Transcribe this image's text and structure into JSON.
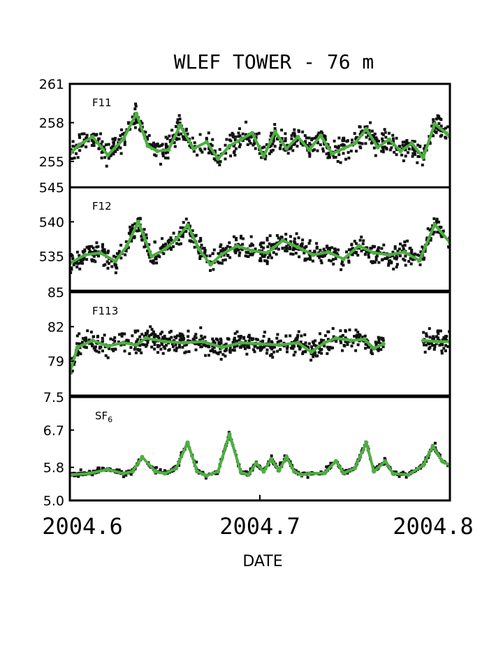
{
  "chart_data": {
    "type": "scatter",
    "title": "WLEF TOWER - 76 m",
    "xlabel": "DATE",
    "xlim": [
      2004.6,
      2004.8
    ],
    "xticks": [
      "2004.6",
      "2004.7",
      "2004.8"
    ],
    "colors": {
      "points": "#111111",
      "smooth": "#4caf3f"
    },
    "grid": false,
    "panels": [
      {
        "label": "F11",
        "ylim": [
          253,
          261
        ],
        "yticks": [
          "255",
          "258",
          "261"
        ],
        "smooth": {
          "x": [
            2004.6,
            2004.605,
            2004.612,
            2004.62,
            2004.628,
            2004.635,
            2004.641,
            2004.646,
            2004.652,
            2004.658,
            2004.665,
            2004.672,
            2004.678,
            2004.684,
            2004.69,
            2004.696,
            2004.702,
            2004.708,
            2004.714,
            2004.72,
            2004.726,
            2004.732,
            2004.738,
            2004.744,
            2004.75,
            2004.756,
            2004.762,
            2004.768,
            2004.774,
            2004.78,
            2004.786,
            2004.792,
            2004.798,
            2004.8
          ],
          "y": [
            255.6,
            256.3,
            256.9,
            255.5,
            256.7,
            258.7,
            256.2,
            255.8,
            255.9,
            257.8,
            256.0,
            256.5,
            255.2,
            256.2,
            256.7,
            257.2,
            255.4,
            257.3,
            256.0,
            256.9,
            255.9,
            257.0,
            255.6,
            256.0,
            256.4,
            257.5,
            256.1,
            256.7,
            255.8,
            256.4,
            255.3,
            257.9,
            257.2,
            256.9
          ],
          "noise": 1.3
        }
      },
      {
        "label": "F12",
        "ylim": [
          530,
          545
        ],
        "yticks": [
          "535",
          "540",
          "545"
        ],
        "smooth": {
          "x": [
            2004.6,
            2004.608,
            2004.616,
            2004.624,
            2004.63,
            2004.636,
            2004.643,
            2004.65,
            2004.656,
            2004.662,
            2004.668,
            2004.674,
            2004.68,
            2004.688,
            2004.696,
            2004.704,
            2004.712,
            2004.72,
            2004.728,
            2004.736,
            2004.744,
            2004.752,
            2004.76,
            2004.768,
            2004.776,
            2004.784,
            2004.792,
            2004.8
          ],
          "y": [
            534.0,
            535.2,
            535.5,
            534.3,
            536.5,
            540.0,
            535.0,
            536.0,
            537.5,
            539.5,
            536.0,
            533.8,
            535.3,
            536.5,
            535.8,
            535.5,
            537.3,
            536.3,
            535.2,
            535.6,
            534.6,
            536.5,
            535.5,
            535.2,
            535.6,
            534.4,
            539.6,
            537.0
          ],
          "noise": 2.5
        }
      },
      {
        "label": "F113",
        "ylim": [
          76,
          85
        ],
        "yticks": [
          "79",
          "82",
          "85"
        ],
        "smooth": {
          "x": [
            2004.6,
            2004.604,
            2004.612,
            2004.62,
            2004.628,
            2004.635,
            2004.64,
            2004.65,
            2004.66,
            2004.67,
            2004.68,
            2004.69,
            2004.7,
            2004.71,
            2004.72,
            2004.727,
            2004.734,
            2004.74,
            2004.748,
            2004.755,
            2004.76,
            2004.765
          ],
          "y": [
            78.0,
            80.2,
            80.8,
            80.3,
            80.6,
            80.4,
            81.0,
            80.7,
            80.6,
            80.7,
            80.2,
            80.6,
            80.5,
            80.4,
            80.6,
            79.8,
            80.6,
            81.0,
            80.8,
            80.9,
            80.1,
            80.5
          ],
          "noise": 1.4,
          "gap": [
            2004.765,
            2004.786
          ],
          "tail_x": [
            2004.786,
            2004.793,
            2004.8
          ],
          "tail_y": [
            80.8,
            80.7,
            80.7
          ]
        }
      },
      {
        "label": "SF6",
        "ylim": [
          5.0,
          7.5
        ],
        "yticks": [
          "5.0",
          "5.8",
          "6.7",
          "7.5"
        ],
        "smooth": {
          "x": [
            2004.6,
            2004.61,
            2004.62,
            2004.628,
            2004.633,
            2004.638,
            2004.645,
            2004.65,
            2004.656,
            2004.662,
            2004.667,
            2004.672,
            2004.678,
            2004.684,
            2004.69,
            2004.694,
            2004.698,
            2004.702,
            2004.706,
            2004.71,
            2004.714,
            2004.718,
            2004.722,
            2004.726,
            2004.734,
            2004.74,
            2004.744,
            2004.75,
            2004.756,
            2004.76,
            2004.766,
            2004.77,
            2004.778,
            2004.786,
            2004.791,
            2004.796,
            2004.8
          ],
          "y": [
            5.62,
            5.65,
            5.75,
            5.65,
            5.7,
            6.05,
            5.7,
            5.65,
            5.78,
            6.4,
            5.7,
            5.6,
            5.7,
            6.6,
            5.68,
            5.62,
            5.9,
            5.7,
            6.0,
            5.72,
            6.05,
            5.7,
            5.62,
            5.65,
            5.66,
            5.95,
            5.66,
            5.78,
            6.4,
            5.7,
            5.95,
            5.65,
            5.62,
            5.85,
            6.32,
            5.95,
            5.85
          ],
          "noise": 0.12
        }
      }
    ]
  }
}
